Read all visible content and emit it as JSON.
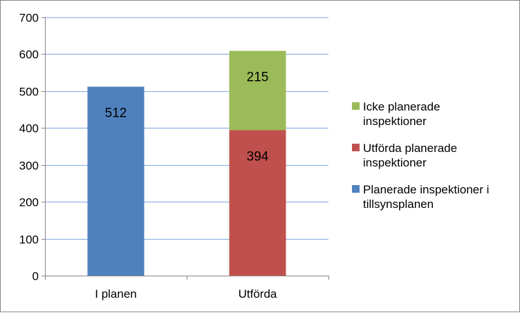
{
  "chart_data": {
    "type": "bar",
    "stacked": true,
    "categories": [
      "I planen",
      "Utförda"
    ],
    "series": [
      {
        "name": "Planerade inspektioner i tillsynsplanen",
        "values": [
          512,
          0
        ],
        "color": "#4F81BD"
      },
      {
        "name": "Utförda planerade inspektioner",
        "values": [
          0,
          394
        ],
        "color": "#C0504D"
      },
      {
        "name": "Icke planerade inspektioner",
        "values": [
          0,
          215
        ],
        "color": "#9BBB59"
      }
    ],
    "data_labels": [
      {
        "category": "I planen",
        "series": "Planerade inspektioner i tillsynsplanen",
        "text": "512"
      },
      {
        "category": "Utförda",
        "series": "Utförda planerade inspektioner",
        "text": "394"
      },
      {
        "category": "Utförda",
        "series": "Icke planerade inspektioner",
        "text": "215"
      }
    ],
    "yticks": [
      "0",
      "100",
      "200",
      "300",
      "400",
      "500",
      "600",
      "700"
    ],
    "ylim": [
      0,
      700
    ],
    "grid": true,
    "gridline_color": "#8EB4E3",
    "legend_position": "right",
    "legend_order": [
      "Icke planerade inspektioner",
      "Utförda planerade inspektioner",
      "Planerade inspektioner i tillsynsplanen"
    ]
  }
}
